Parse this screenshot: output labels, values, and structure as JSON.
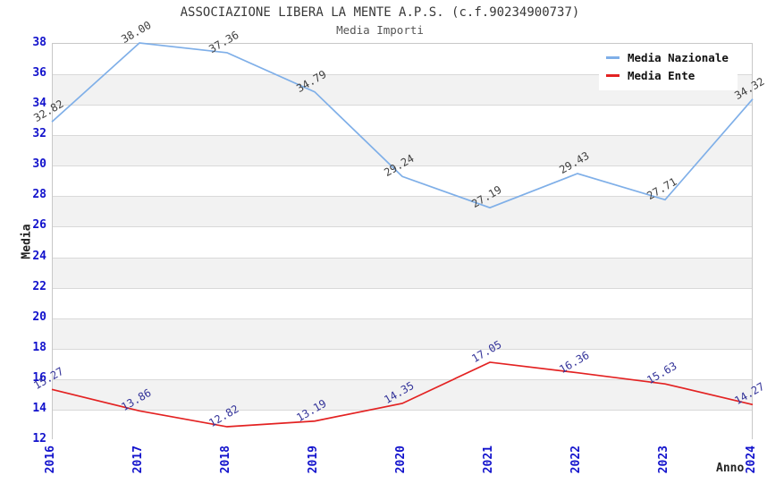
{
  "chart_data": {
    "type": "line",
    "title": "ASSOCIAZIONE LIBERA LA MENTE A.P.S. (c.f.90234900737)",
    "subtitle": "Media Importi",
    "xlabel": "Anno",
    "ylabel": "Media",
    "x": [
      "2016",
      "2017",
      "2018",
      "2019",
      "2020",
      "2021",
      "2022",
      "2023",
      "2024"
    ],
    "series": [
      {
        "name": "Media Nazionale",
        "color": "#7fafe8",
        "label_color": "#404040",
        "values": [
          32.82,
          38.0,
          37.36,
          34.79,
          29.24,
          27.19,
          29.43,
          27.71,
          34.32
        ]
      },
      {
        "name": "Media Ente",
        "color": "#e32222",
        "label_color": "#333399",
        "values": [
          15.27,
          13.86,
          12.82,
          13.19,
          14.35,
          17.05,
          16.36,
          15.63,
          14.27
        ]
      }
    ],
    "ylim": [
      12,
      38
    ],
    "ytick_step": 2,
    "grid": "horizontal-bands",
    "legend_position": "top-right",
    "colors": {
      "background": "#ffffff",
      "band_alt": "#f2f2f2",
      "grid_line": "#d9d9d9",
      "frame": "#c8c8c8",
      "tick_label": "#1212cc",
      "axis_title": "#222222",
      "title": "#383838",
      "subtitle": "#555555"
    }
  }
}
